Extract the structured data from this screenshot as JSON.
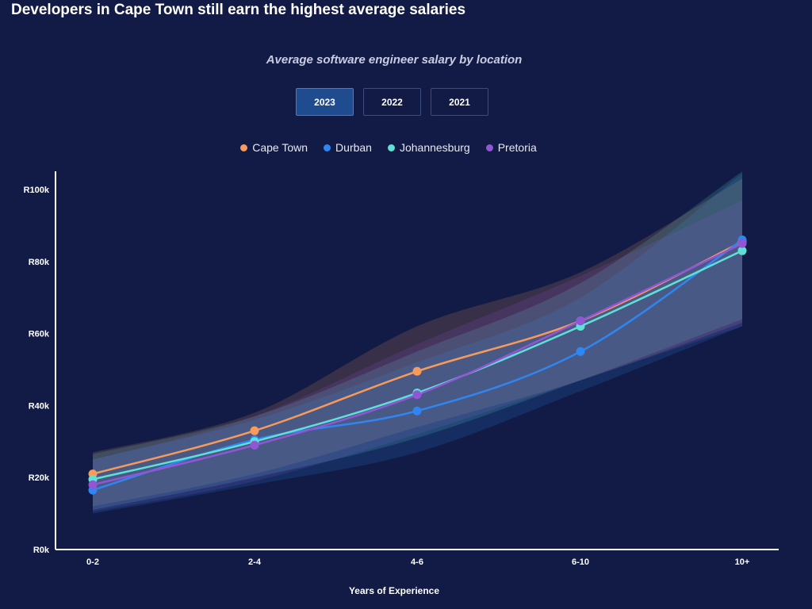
{
  "headline": "Developers in Cape Town still earn the highest average salaries",
  "subtitle": "Average software engineer salary by location",
  "tabs": [
    {
      "label": "2023",
      "active": true
    },
    {
      "label": "2022",
      "active": false
    },
    {
      "label": "2021",
      "active": false
    }
  ],
  "colors": {
    "background": "#121b45",
    "axis": "#ffffff"
  },
  "chart_data": {
    "type": "line",
    "title": "Average software engineer salary by location",
    "xlabel": "Years of Experience",
    "ylabel": "",
    "categories": [
      "0-2",
      "2-4",
      "4-6",
      "6-10",
      "10+"
    ],
    "ylim": [
      0,
      100000
    ],
    "yticks": [
      {
        "value": 0,
        "label": "R0k"
      },
      {
        "value": 20000,
        "label": "R20k"
      },
      {
        "value": 40000,
        "label": "R40k"
      },
      {
        "value": 60000,
        "label": "R60k"
      },
      {
        "value": 80000,
        "label": "R80k"
      },
      {
        "value": 100000,
        "label": "R100k"
      }
    ],
    "grid": false,
    "legend_position": "top-center",
    "series": [
      {
        "name": "Cape Town",
        "color": "#f79a5b",
        "values": [
          21000,
          33000,
          49500,
          63500,
          85500
        ],
        "band_low": [
          12000,
          21000,
          34000,
          47000,
          63000
        ],
        "band_high": [
          27000,
          38000,
          62000,
          77000,
          103000
        ]
      },
      {
        "name": "Durban",
        "color": "#2f86f0",
        "values": [
          16500,
          30500,
          38500,
          55000,
          86000
        ],
        "band_low": [
          10000,
          18000,
          27000,
          44000,
          62000
        ],
        "band_high": [
          25000,
          36000,
          52000,
          70000,
          104500
        ]
      },
      {
        "name": "Johannesburg",
        "color": "#5ee0d6",
        "values": [
          19500,
          30000,
          43500,
          62000,
          83000
        ],
        "band_low": [
          11000,
          20000,
          31000,
          47000,
          64000
        ],
        "band_high": [
          26500,
          37000,
          55000,
          74000,
          105000
        ]
      },
      {
        "name": "Pretoria",
        "color": "#9156d6",
        "values": [
          18000,
          29000,
          43000,
          63500,
          85000
        ],
        "band_low": [
          10500,
          19000,
          32000,
          47000,
          62000
        ],
        "band_high": [
          25000,
          37000,
          57000,
          76000,
          97000
        ]
      }
    ]
  }
}
